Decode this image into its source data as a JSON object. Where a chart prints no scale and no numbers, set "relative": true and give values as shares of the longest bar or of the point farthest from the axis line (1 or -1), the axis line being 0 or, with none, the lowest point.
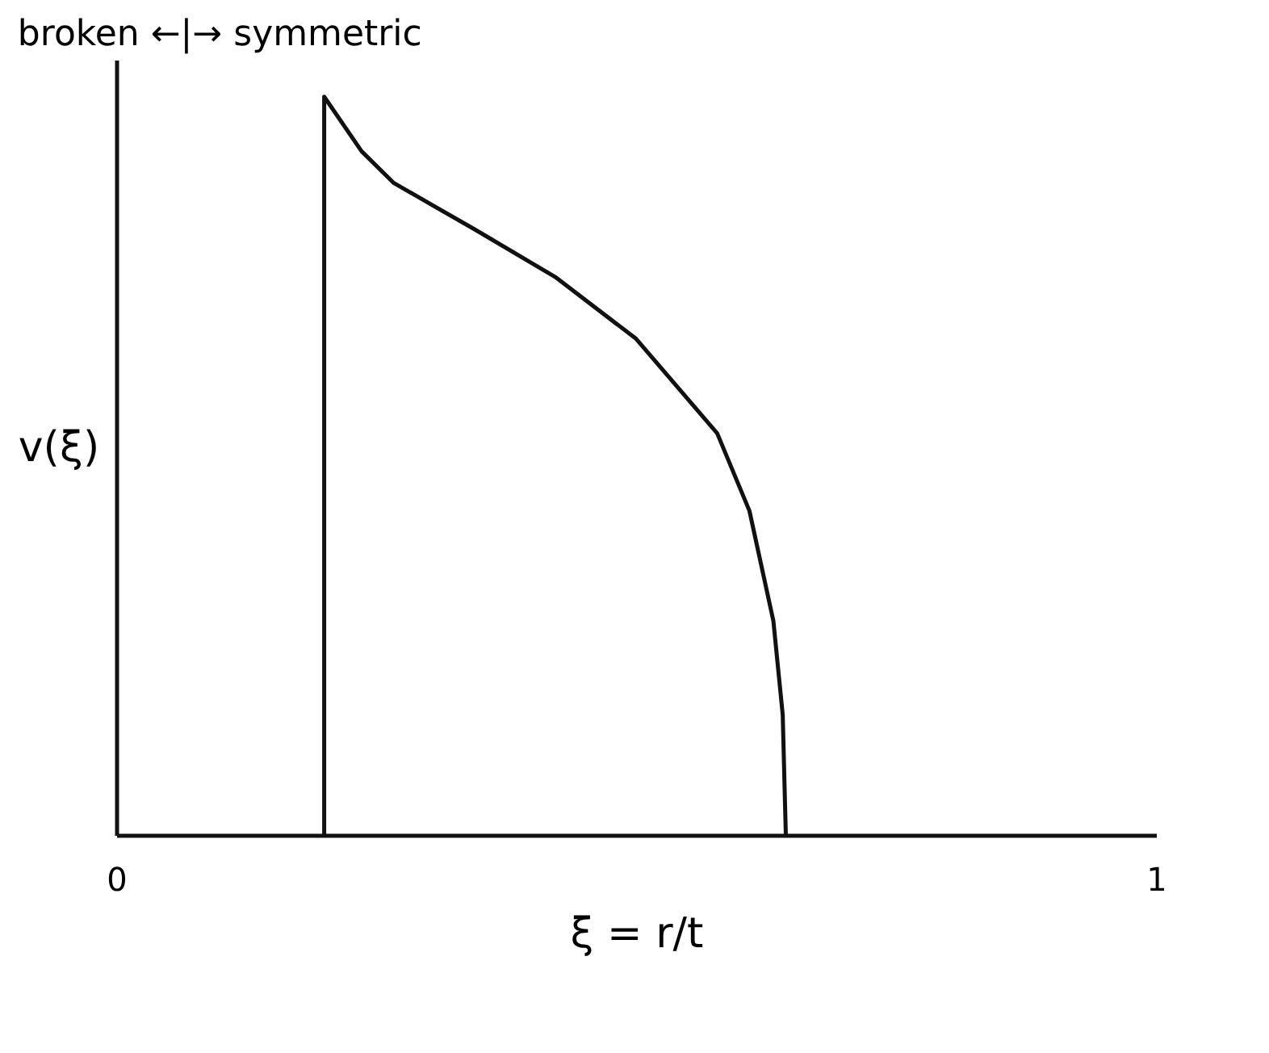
{
  "chart_data": {
    "type": "line",
    "relative": true,
    "xlabel": "ξ = r/t",
    "ylabel": "v(ξ)",
    "annotations": [
      "broken ←|→ symmetric"
    ],
    "xlim": [
      0,
      1
    ],
    "xticks": [
      0,
      1
    ],
    "grid": false,
    "legend": false,
    "marker": "none",
    "line_style": "solid",
    "series": [
      {
        "color": "#111111",
        "x": [
          0.2,
          0.2,
          0.236,
          0.267,
          0.345,
          0.422,
          0.5,
          0.578,
          0.609,
          0.632,
          0.641,
          0.644
        ],
        "values": [
          0,
          1,
          0.926,
          0.883,
          0.82,
          0.756,
          0.672,
          0.544,
          0.439,
          0.29,
          0.163,
          0
        ]
      }
    ]
  }
}
